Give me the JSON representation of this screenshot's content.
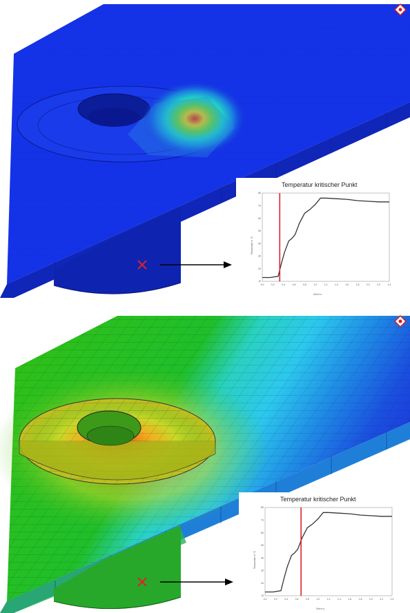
{
  "panels": [
    {
      "id": "top",
      "chart": {
        "title": "Temperatur kritischer Punkt",
        "xlabel": "Zeit in s",
        "ylabel": "Temperatur in °C",
        "xlim": [
          0,
          2.4
        ],
        "ylim": [
          10,
          80
        ],
        "x_ticks": [
          "0.0",
          "0.2",
          "0.4",
          "0.6",
          "0.8",
          "1.0",
          "1.2",
          "1.4",
          "1.6",
          "1.8",
          "2.0",
          "2.2",
          "2.4"
        ],
        "y_ticks": [
          "10",
          "20",
          "30",
          "40",
          "50",
          "60",
          "70",
          "80"
        ],
        "marker_time": 0.33,
        "curve": {
          "x": [
            0.0,
            0.15,
            0.3,
            0.36,
            0.42,
            0.5,
            0.56,
            0.62,
            0.7,
            0.8,
            0.9,
            1.0,
            1.1,
            1.2,
            1.4,
            1.6,
            1.8,
            2.0,
            2.2,
            2.4
          ],
          "y": [
            13,
            13,
            14,
            24,
            33,
            42,
            44,
            47,
            56,
            64,
            67,
            71,
            76,
            76,
            75.5,
            75,
            74,
            73.5,
            73,
            73
          ]
        }
      },
      "colors": {
        "marker_line": "#e0202a",
        "curve": "#333333"
      }
    },
    {
      "id": "bottom",
      "chart": {
        "title": "Temperatur kritischer Punkt",
        "xlabel": "Zeit in s",
        "ylabel": "Temperatur in °C",
        "xlim": [
          0,
          2.4
        ],
        "ylim": [
          10,
          80
        ],
        "x_ticks": [
          "0.0",
          "0.2",
          "0.4",
          "0.6",
          "0.8",
          "1.0",
          "1.2",
          "1.4",
          "1.6",
          "1.8",
          "2.0",
          "2.2",
          "2.4"
        ],
        "y_ticks": [
          "10",
          "20",
          "30",
          "40",
          "50",
          "60",
          "70",
          "80"
        ],
        "marker_time": 0.68,
        "curve": {
          "x": [
            0.0,
            0.15,
            0.3,
            0.36,
            0.42,
            0.5,
            0.56,
            0.62,
            0.7,
            0.8,
            0.9,
            1.0,
            1.1,
            1.2,
            1.4,
            1.6,
            1.8,
            2.0,
            2.2,
            2.4
          ],
          "y": [
            13,
            13,
            14,
            24,
            33,
            42,
            44,
            47,
            56,
            64,
            67,
            71,
            76,
            76,
            75.5,
            75,
            74,
            73.5,
            73,
            73
          ]
        }
      },
      "colors": {
        "marker_line": "#e0202a",
        "curve": "#333333"
      }
    }
  ],
  "icons": [
    "logo-badge-icon",
    "critical-point-x-icon",
    "arrow-right-icon"
  ]
}
